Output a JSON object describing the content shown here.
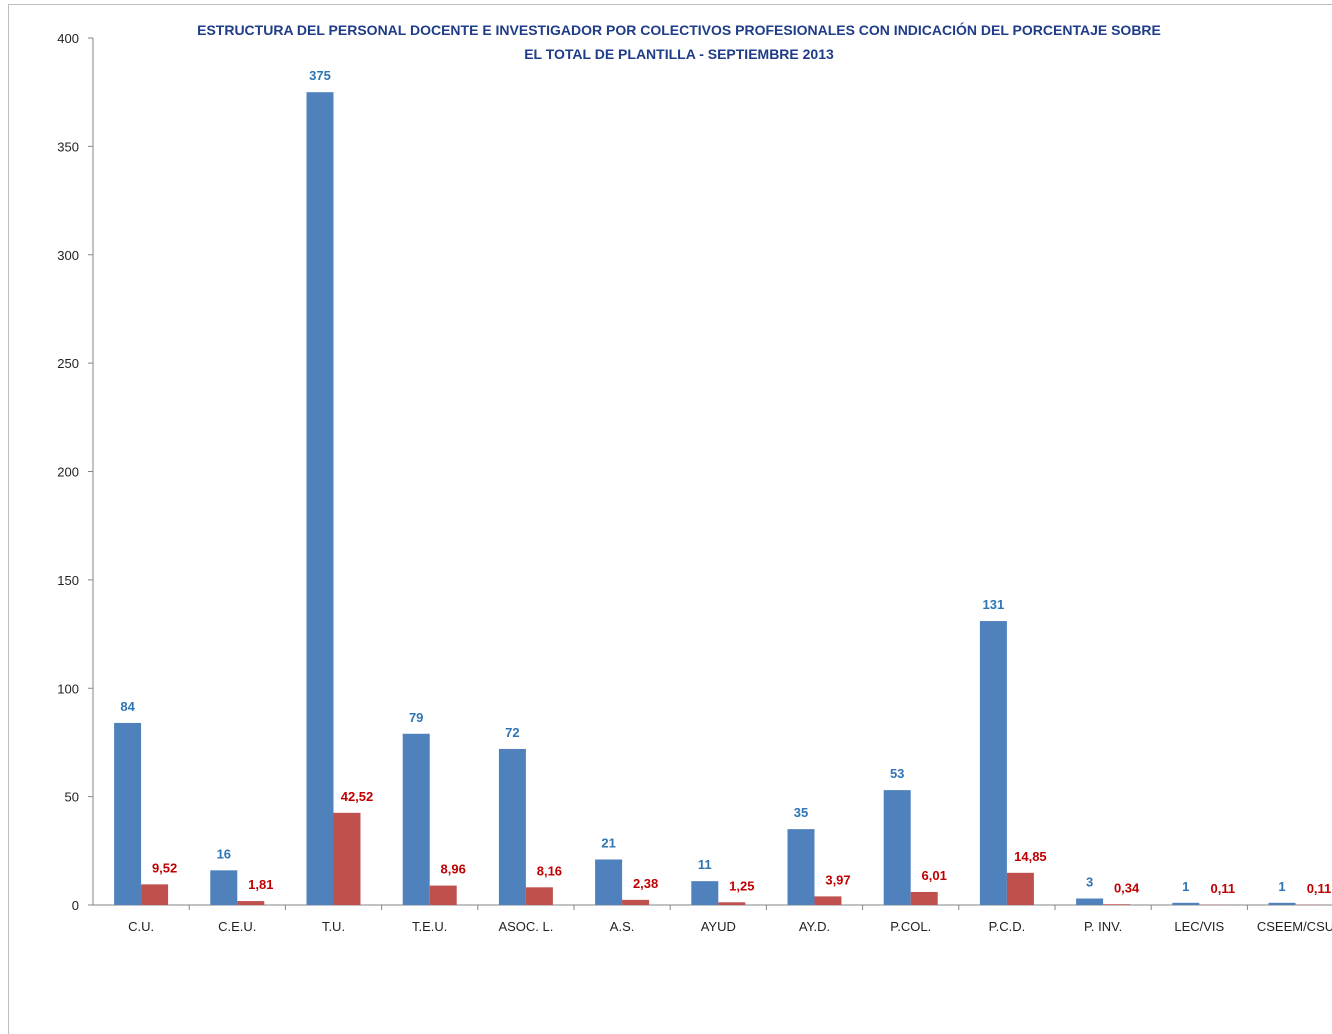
{
  "chart_data": {
    "type": "bar",
    "title_line1": "ESTRUCTURA DEL PERSONAL DOCENTE E INVESTIGADOR POR COLECTIVOS PROFESIONALES CON INDICACIÓN DEL PORCENTAJE SOBRE",
    "title_line2": "EL TOTAL DE PLANTILLA - SEPTIEMBRE 2013",
    "categories": [
      "C.U.",
      "C.E.U.",
      "T.U.",
      "T.E.U.",
      "ASOC. L.",
      "A.S.",
      "AYUD",
      "AY.D.",
      "P.COL.",
      "P.C.D.",
      "P. INV.",
      "LEC/VIS",
      "CSEEM/CSU"
    ],
    "series": [
      {
        "values": [
          84,
          16,
          375,
          79,
          72,
          21,
          11,
          35,
          53,
          131,
          3,
          1,
          1
        ],
        "labels": [
          "84",
          "16",
          "375",
          "79",
          "72",
          "21",
          "11",
          "35",
          "53",
          "131",
          "3",
          "1",
          "1"
        ],
        "color": "#4f81bd",
        "label_color": "#2e75b6"
      },
      {
        "values": [
          9.52,
          1.81,
          42.52,
          8.96,
          8.16,
          2.38,
          1.25,
          3.97,
          6.01,
          14.85,
          0.34,
          0.11,
          0.11
        ],
        "labels": [
          "9,52",
          "1,81",
          "42,52",
          "8,96",
          "8,16",
          "2,38",
          "1,25",
          "3,97",
          "6,01",
          "14,85",
          "0,34",
          "0,11",
          "0,11"
        ],
        "color": "#c0504d",
        "label_color": "#c00000"
      }
    ],
    "ylim": [
      0,
      400
    ],
    "yticks": [
      0,
      50,
      100,
      150,
      200,
      250,
      300,
      350,
      400
    ],
    "xlabel": "",
    "ylabel": "",
    "grid": false,
    "legend": "none"
  }
}
